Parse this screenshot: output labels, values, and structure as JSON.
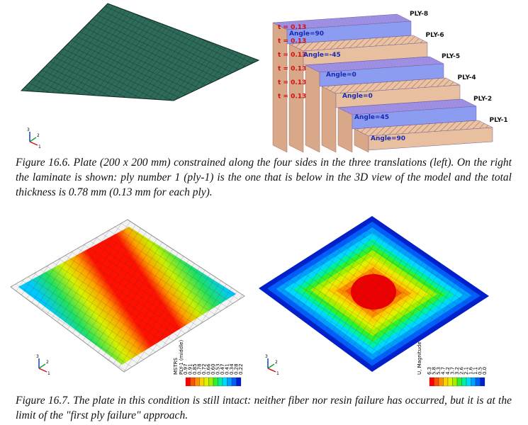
{
  "figure_16_6": {
    "ply_labels": [
      "PLY-8",
      "PLY-6",
      "PLY-5",
      "PLY-4",
      "PLY-2",
      "PLY-1"
    ],
    "thickness_labels": [
      "t = 0.13",
      "t = 0.13",
      "t = 0.13",
      "t = 0.13",
      "t = 0.13",
      "t = 0.13"
    ],
    "angle_labels": [
      "Angle=90",
      "Angle=-45",
      "Angle=0",
      "Angle=0",
      "Angle=45",
      "Angle=90"
    ],
    "triad": [
      "3",
      "2",
      "1"
    ],
    "caption": "Figure 16.6. Plate (200 x 200 mm) constrained along the four sides in the three translations (left). On the right the laminate is shown: ply number 1 (ply-1) is the one that is below in the 3D view of the model and the total thickness is 0.78 mm (0.13 mm for each ply)."
  },
  "figure_16_7": {
    "left_legend": {
      "title": "MSTRS",
      "subtitle": "PLY-1 (middle)",
      "values": [
        "0.97",
        "0.91",
        "0.85",
        "0.78",
        "0.72",
        "0.66",
        "0.60",
        "0.53",
        "0.47",
        "0.41",
        "0.34",
        "0.28",
        "0.22"
      ]
    },
    "right_legend": {
      "title": "U, Magnitude",
      "values": [
        "6.3",
        "5.8",
        "5.3",
        "4.7",
        "4.2",
        "3.7",
        "3.2",
        "2.6",
        "2.1",
        "1.6",
        "1.1",
        "0.5",
        "0.0"
      ]
    },
    "caption": "Figure 16.7. The plate in this condition is still intact: neither fiber nor resin failure has occurred, but it is at the limit of the \"first ply failure\" approach."
  }
}
